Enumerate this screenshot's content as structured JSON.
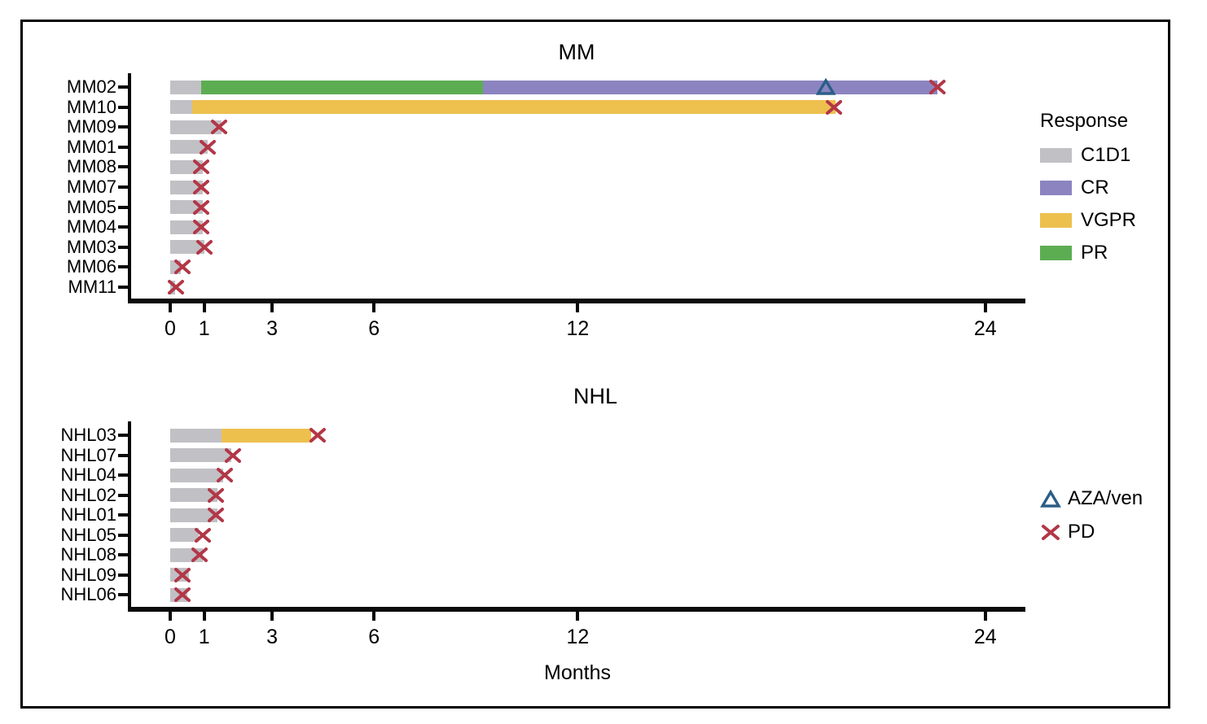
{
  "figure": {
    "xlabel": "Months",
    "legend_response": {
      "title": "Response",
      "items": [
        {
          "label": "C1D1",
          "response": "C1D1"
        },
        {
          "label": "CR",
          "response": "CR"
        },
        {
          "label": "VGPR",
          "response": "VGPR"
        },
        {
          "label": "PR",
          "response": "PR"
        }
      ]
    },
    "legend_markers": {
      "items": [
        {
          "label": "AZA/ven",
          "marker": "triangle"
        },
        {
          "label": "PD",
          "marker": "x"
        }
      ]
    }
  },
  "colors": {
    "C1D1": "#c1c0c5",
    "CR": "#8b84c0",
    "VGPR": "#edc04e",
    "PR": "#5cad52",
    "pd_x": "#b23747",
    "aza_triangle": "#2b5e87",
    "axis": "#0a0a0a",
    "text": "#000000"
  },
  "chart_data": [
    {
      "type": "bar",
      "variant": "swimmer",
      "title": "MM",
      "xlabel": "Months",
      "x_ticks": [
        0,
        1,
        3,
        6,
        12,
        24
      ],
      "xlim": [
        0,
        25.2
      ],
      "unit": "months",
      "legend_position": "right",
      "patients": [
        {
          "id": "MM02",
          "segments": [
            {
              "response": "C1D1",
              "start": 0,
              "end": 0.9
            },
            {
              "response": "PR",
              "start": 0.9,
              "end": 9.2
            },
            {
              "response": "CR",
              "start": 9.2,
              "end": 22.6
            }
          ],
          "aza_ven": 19.3,
          "pd": 22.6
        },
        {
          "id": "MM10",
          "segments": [
            {
              "response": "C1D1",
              "start": 0,
              "end": 0.65
            },
            {
              "response": "VGPR",
              "start": 0.65,
              "end": 19.6
            }
          ],
          "pd": 19.55
        },
        {
          "id": "MM09",
          "segments": [
            {
              "response": "C1D1",
              "start": 0,
              "end": 1.5
            }
          ],
          "pd": 1.45
        },
        {
          "id": "MM01",
          "segments": [
            {
              "response": "C1D1",
              "start": 0,
              "end": 1.1
            }
          ],
          "pd": 1.1
        },
        {
          "id": "MM08",
          "segments": [
            {
              "response": "C1D1",
              "start": 0,
              "end": 0.95
            }
          ],
          "pd": 0.9
        },
        {
          "id": "MM07",
          "segments": [
            {
              "response": "C1D1",
              "start": 0,
              "end": 0.95
            }
          ],
          "pd": 0.9
        },
        {
          "id": "MM05",
          "segments": [
            {
              "response": "C1D1",
              "start": 0,
              "end": 0.95
            }
          ],
          "pd": 0.9
        },
        {
          "id": "MM04",
          "segments": [
            {
              "response": "C1D1",
              "start": 0,
              "end": 0.95
            }
          ],
          "pd": 0.9
        },
        {
          "id": "MM03",
          "segments": [
            {
              "response": "C1D1",
              "start": 0,
              "end": 1.0
            }
          ],
          "pd": 1.0
        },
        {
          "id": "MM06",
          "segments": [
            {
              "response": "C1D1",
              "start": 0,
              "end": 0.3
            }
          ],
          "pd": 0.35
        },
        {
          "id": "MM11",
          "segments": [
            {
              "response": "C1D1",
              "start": 0,
              "end": 0.15
            }
          ],
          "pd": 0.17
        }
      ]
    },
    {
      "type": "bar",
      "variant": "swimmer",
      "title": "NHL",
      "xlabel": "Months",
      "x_ticks": [
        0,
        1,
        3,
        6,
        12,
        24
      ],
      "xlim": [
        0,
        25.2
      ],
      "unit": "months",
      "legend_position": "right",
      "patients": [
        {
          "id": "NHL03",
          "segments": [
            {
              "response": "C1D1",
              "start": 0,
              "end": 1.5
            },
            {
              "response": "VGPR",
              "start": 1.5,
              "end": 4.15
            }
          ],
          "pd": 4.35
        },
        {
          "id": "NHL07",
          "segments": [
            {
              "response": "C1D1",
              "start": 0,
              "end": 1.8
            }
          ],
          "pd": 1.85
        },
        {
          "id": "NHL04",
          "segments": [
            {
              "response": "C1D1",
              "start": 0,
              "end": 1.55
            }
          ],
          "pd": 1.6
        },
        {
          "id": "NHL02",
          "segments": [
            {
              "response": "C1D1",
              "start": 0,
              "end": 1.4
            }
          ],
          "pd": 1.35
        },
        {
          "id": "NHL01",
          "segments": [
            {
              "response": "C1D1",
              "start": 0,
              "end": 1.4
            }
          ],
          "pd": 1.35
        },
        {
          "id": "NHL05",
          "segments": [
            {
              "response": "C1D1",
              "start": 0,
              "end": 0.85
            }
          ],
          "pd": 0.97
        },
        {
          "id": "NHL08",
          "segments": [
            {
              "response": "C1D1",
              "start": 0,
              "end": 0.95
            }
          ],
          "pd": 0.87
        },
        {
          "id": "NHL09",
          "segments": [
            {
              "response": "C1D1",
              "start": 0,
              "end": 0.55
            }
          ],
          "pd": 0.36
        },
        {
          "id": "NHL06",
          "segments": [
            {
              "response": "C1D1",
              "start": 0,
              "end": 0.5
            }
          ],
          "pd": 0.35
        }
      ]
    }
  ]
}
